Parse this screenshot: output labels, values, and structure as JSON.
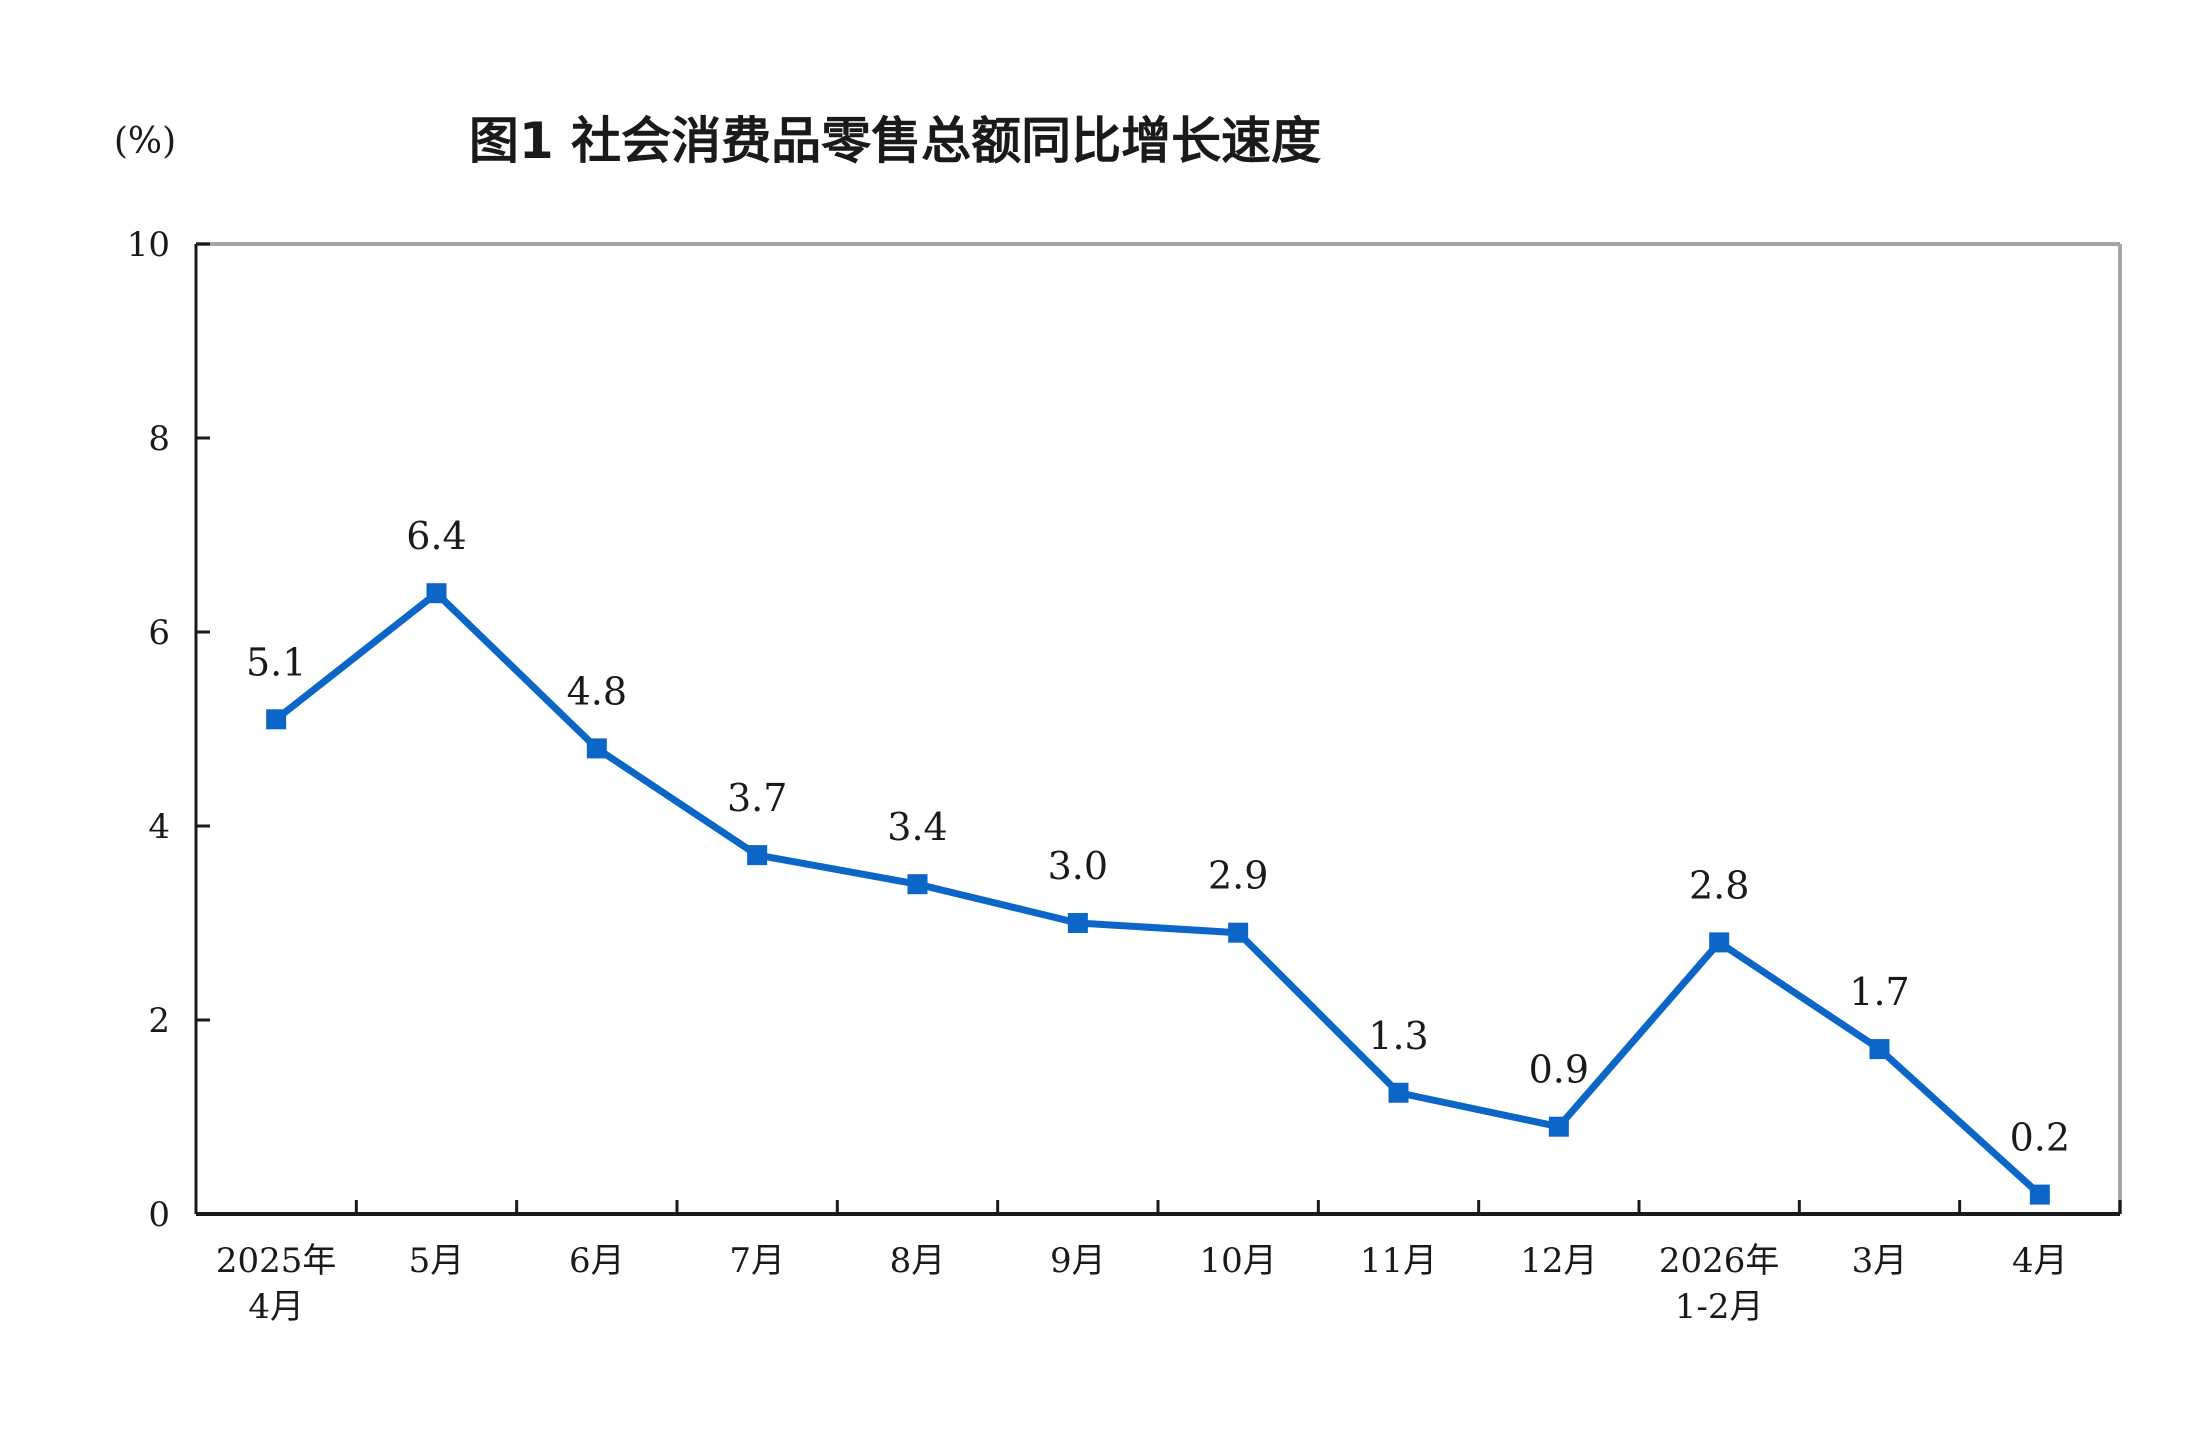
{
  "chart_data": {
    "type": "line",
    "title": "图1  社会消费品零售总额同比增长速度",
    "unit": "(%)",
    "categories": [
      [
        "2025年",
        "4月"
      ],
      [
        "5月"
      ],
      [
        "6月"
      ],
      [
        "7月"
      ],
      [
        "8月"
      ],
      [
        "9月"
      ],
      [
        "10月"
      ],
      [
        "11月"
      ],
      [
        "12月"
      ],
      [
        "2026年",
        "1-2月"
      ],
      [
        "3月"
      ],
      [
        "4月"
      ]
    ],
    "values": [
      5.1,
      6.4,
      4.8,
      3.7,
      3.4,
      3.0,
      2.9,
      1.25,
      0.9,
      2.8,
      1.7,
      0.2
    ],
    "data_labels": [
      "5.1",
      "6.4",
      "4.8",
      "3.7",
      "3.4",
      "3.0",
      "2.9",
      "1.3",
      "0.9",
      "2.8",
      "1.7",
      "0.2"
    ],
    "yticks": [
      "0",
      "2",
      "4",
      "6",
      "8",
      "10"
    ],
    "ylim": [
      0,
      10
    ],
    "grid": false,
    "legend": "none",
    "colors": {
      "line": "#0B66C8",
      "axis": "#1a1a1a",
      "frame": "#a6a6a6"
    }
  }
}
